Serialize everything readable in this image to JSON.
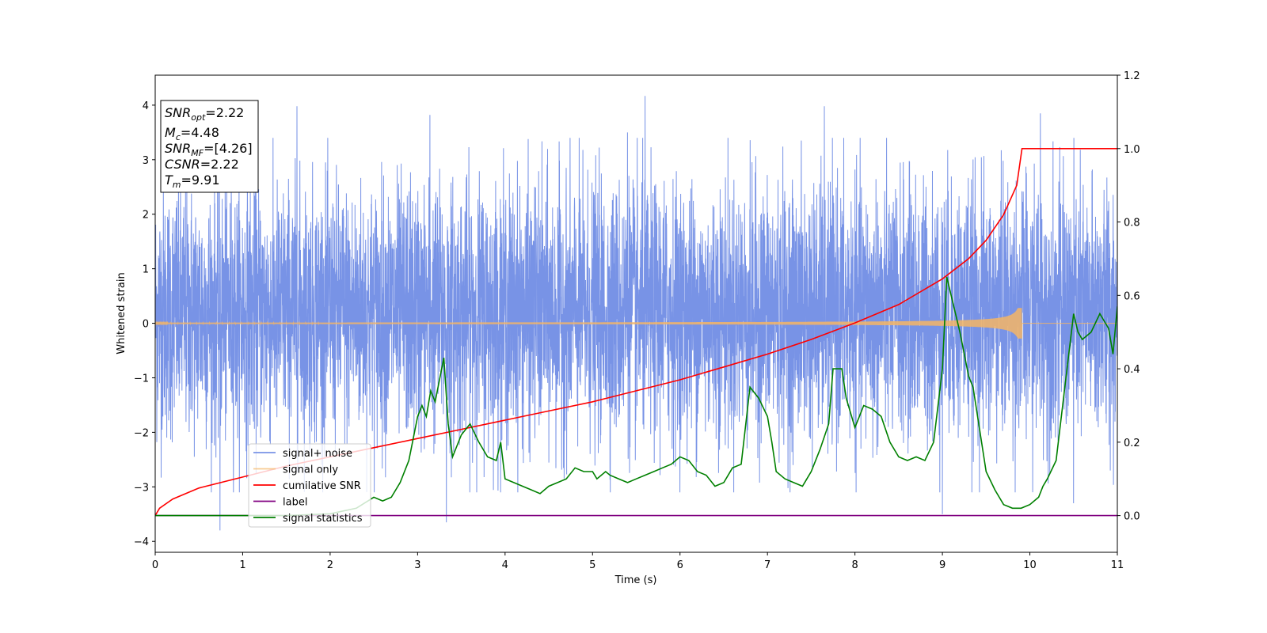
{
  "chart_data": {
    "type": "line",
    "xlabel": "Time (s)",
    "ylabel": "Whitened strain",
    "xlim": [
      0,
      11
    ],
    "ylim": [
      -4.2,
      4.55
    ],
    "y2lim": [
      -0.1,
      1.2
    ],
    "xticks": [
      "0",
      "1",
      "2",
      "3",
      "4",
      "5",
      "6",
      "7",
      "8",
      "9",
      "10",
      "11"
    ],
    "yticks": [
      "−4",
      "−3",
      "−2",
      "−1",
      "0",
      "1",
      "2",
      "3",
      "4"
    ],
    "y2ticks": [
      "0.0",
      "0.2",
      "0.4",
      "0.6",
      "0.8",
      "1.0",
      "1.2"
    ],
    "grid": false,
    "legend_position": "lower-left",
    "info_box": {
      "snr_opt": {
        "label": "SNR",
        "sub": "opt",
        "value": "=2.22"
      },
      "mc": {
        "label": "M",
        "sub": "c",
        "value": "=4.48"
      },
      "snr_mf": {
        "label": "SNR",
        "sub": "MF",
        "value": "=[4.26]"
      },
      "csnr": {
        "label": "CSNR",
        "value": "=2.22"
      },
      "tm": {
        "label": "T",
        "sub": "m",
        "value": "=9.91"
      }
    },
    "series": [
      {
        "name": "signal+ noise",
        "axis": "left",
        "color": "#7893e6",
        "description_kind": "whitened gaussian noise band",
        "typical_range": [
          -1.9,
          2.3
        ],
        "peaks": [
          {
            "x": 0.74,
            "y": -3.8
          },
          {
            "x": 1.62,
            "y": 3.98
          },
          {
            "x": 3.14,
            "y": 3.82
          },
          {
            "x": 3.33,
            "y": -3.65
          },
          {
            "x": 5.6,
            "y": 4.17
          },
          {
            "x": 5.4,
            "y": 3.5
          },
          {
            "x": 7.65,
            "y": 3.98
          },
          {
            "x": 9.0,
            "y": -3.5
          },
          {
            "x": 10.12,
            "y": 3.85
          },
          {
            "x": 10.5,
            "y": -3.3
          }
        ]
      },
      {
        "name": "signal only",
        "axis": "left",
        "color": "#f5b565",
        "description_kind": "chirp envelope",
        "chirp_end": 9.91,
        "max_amplitude": 0.28
      },
      {
        "name": "cumilative SNR",
        "axis": "right",
        "color": "#ff0000",
        "x": [
          0,
          0.05,
          0.2,
          0.5,
          1,
          1.5,
          2,
          2.5,
          3,
          3.5,
          4,
          4.5,
          5,
          5.5,
          6,
          6.5,
          7,
          7.5,
          8,
          8.5,
          9,
          9.3,
          9.5,
          9.7,
          9.85,
          9.91,
          10.5,
          11
        ],
        "values": [
          0.0,
          0.02,
          0.045,
          0.075,
          0.105,
          0.135,
          0.16,
          0.185,
          0.21,
          0.235,
          0.26,
          0.285,
          0.31,
          0.34,
          0.37,
          0.405,
          0.44,
          0.48,
          0.525,
          0.575,
          0.645,
          0.7,
          0.75,
          0.82,
          0.9,
          1.0,
          1.0,
          1.0
        ]
      },
      {
        "name": "label",
        "axis": "right",
        "color": "#800080",
        "x": [
          0,
          11
        ],
        "values": [
          0.0,
          0.0
        ]
      },
      {
        "name": "signal statistics",
        "axis": "right",
        "color": "#008000",
        "x": [
          0,
          0.5,
          1,
          1.5,
          2,
          2.3,
          2.5,
          2.6,
          2.7,
          2.8,
          2.9,
          3.0,
          3.05,
          3.1,
          3.15,
          3.2,
          3.25,
          3.3,
          3.35,
          3.4,
          3.5,
          3.6,
          3.7,
          3.8,
          3.9,
          3.95,
          4.0,
          4.1,
          4.2,
          4.3,
          4.4,
          4.5,
          4.6,
          4.7,
          4.8,
          4.9,
          5.0,
          5.05,
          5.1,
          5.15,
          5.2,
          5.3,
          5.4,
          5.5,
          5.6,
          5.7,
          5.8,
          5.9,
          6.0,
          6.1,
          6.2,
          6.3,
          6.4,
          6.5,
          6.6,
          6.7,
          6.8,
          6.9,
          7.0,
          7.05,
          7.1,
          7.2,
          7.3,
          7.4,
          7.5,
          7.6,
          7.7,
          7.75,
          7.8,
          7.85,
          7.9,
          8.0,
          8.05,
          8.1,
          8.2,
          8.3,
          8.4,
          8.5,
          8.6,
          8.7,
          8.8,
          8.9,
          9.0,
          9.05,
          9.1,
          9.2,
          9.3,
          9.35,
          9.5,
          9.6,
          9.7,
          9.8,
          9.9,
          10.0,
          10.1,
          10.15,
          10.2,
          10.3,
          10.4,
          10.5,
          10.55,
          10.6,
          10.7,
          10.8,
          10.9,
          10.95,
          11.0
        ],
        "values": [
          0.0,
          0.0,
          0.0,
          0.0,
          0.005,
          0.02,
          0.05,
          0.04,
          0.05,
          0.09,
          0.15,
          0.27,
          0.3,
          0.27,
          0.34,
          0.31,
          0.37,
          0.43,
          0.25,
          0.16,
          0.22,
          0.25,
          0.2,
          0.16,
          0.15,
          0.2,
          0.1,
          0.09,
          0.08,
          0.07,
          0.06,
          0.08,
          0.09,
          0.1,
          0.13,
          0.12,
          0.12,
          0.1,
          0.11,
          0.12,
          0.11,
          0.1,
          0.09,
          0.1,
          0.11,
          0.12,
          0.13,
          0.14,
          0.16,
          0.15,
          0.12,
          0.11,
          0.08,
          0.09,
          0.13,
          0.14,
          0.35,
          0.32,
          0.27,
          0.2,
          0.12,
          0.1,
          0.09,
          0.08,
          0.12,
          0.18,
          0.25,
          0.4,
          0.4,
          0.4,
          0.32,
          0.24,
          0.27,
          0.3,
          0.29,
          0.27,
          0.2,
          0.16,
          0.15,
          0.16,
          0.15,
          0.2,
          0.4,
          0.65,
          0.6,
          0.5,
          0.38,
          0.35,
          0.12,
          0.07,
          0.03,
          0.02,
          0.02,
          0.03,
          0.05,
          0.08,
          0.1,
          0.15,
          0.35,
          0.55,
          0.5,
          0.48,
          0.5,
          0.55,
          0.51,
          0.44,
          0.57
        ]
      }
    ]
  }
}
